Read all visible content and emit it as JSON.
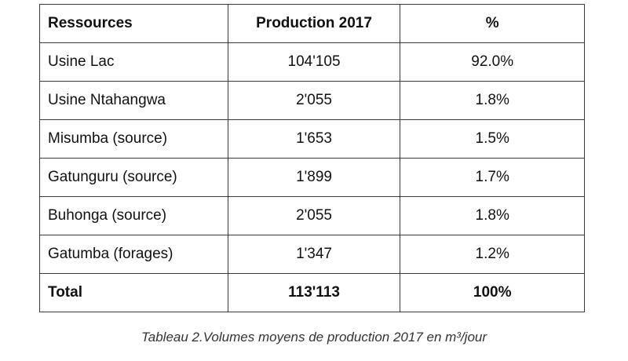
{
  "table": {
    "header": [
      "Ressources",
      "Production 2017",
      "%"
    ],
    "rows": [
      [
        "Usine Lac",
        "104'105",
        "92.0%"
      ],
      [
        "Usine Ntahangwa",
        "2'055",
        "1.8%"
      ],
      [
        "Misumba (source)",
        "1'653",
        "1.5%"
      ],
      [
        "Gatunguru (source)",
        "1'899",
        "1.7%"
      ],
      [
        "Buhonga (source)",
        "2'055",
        "1.8%"
      ],
      [
        "Gatumba (forages)",
        "1'347",
        "1.2%"
      ]
    ],
    "total": [
      "Total",
      "113'113",
      "100%"
    ]
  },
  "caption": "Tableau 2.Volumes moyens de production 2017 en m³/jour"
}
